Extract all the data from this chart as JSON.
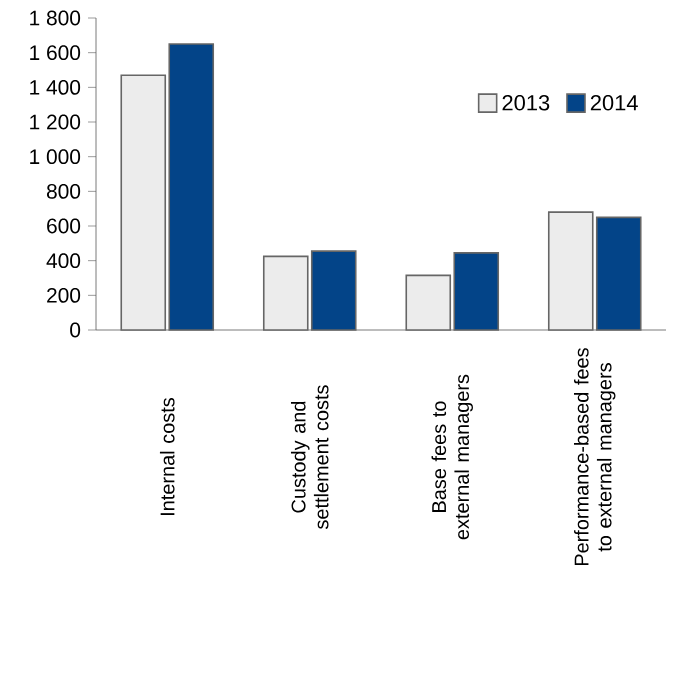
{
  "chart_data": {
    "type": "bar",
    "categories": [
      "Internal costs",
      "Custody and settlement costs",
      "Base fees to external managers",
      "Performance-based fees to external managers"
    ],
    "series": [
      {
        "name": "2013",
        "color": "#ececec",
        "values": [
          1470,
          425,
          315,
          680
        ]
      },
      {
        "name": "2014",
        "color": "#034488",
        "values": [
          1650,
          455,
          445,
          650
        ]
      }
    ],
    "ylim": [
      0,
      1800
    ],
    "yticks": [
      0,
      200,
      400,
      600,
      800,
      {
        "value": 1000,
        "label": "1 000"
      },
      {
        "value": 1200,
        "label": "1 200"
      },
      {
        "value": 1400,
        "label": "1 400"
      },
      {
        "value": 1600,
        "label": "1 600"
      },
      {
        "value": 1800,
        "label": "1 800"
      }
    ],
    "grid": false,
    "legend": "top right"
  }
}
